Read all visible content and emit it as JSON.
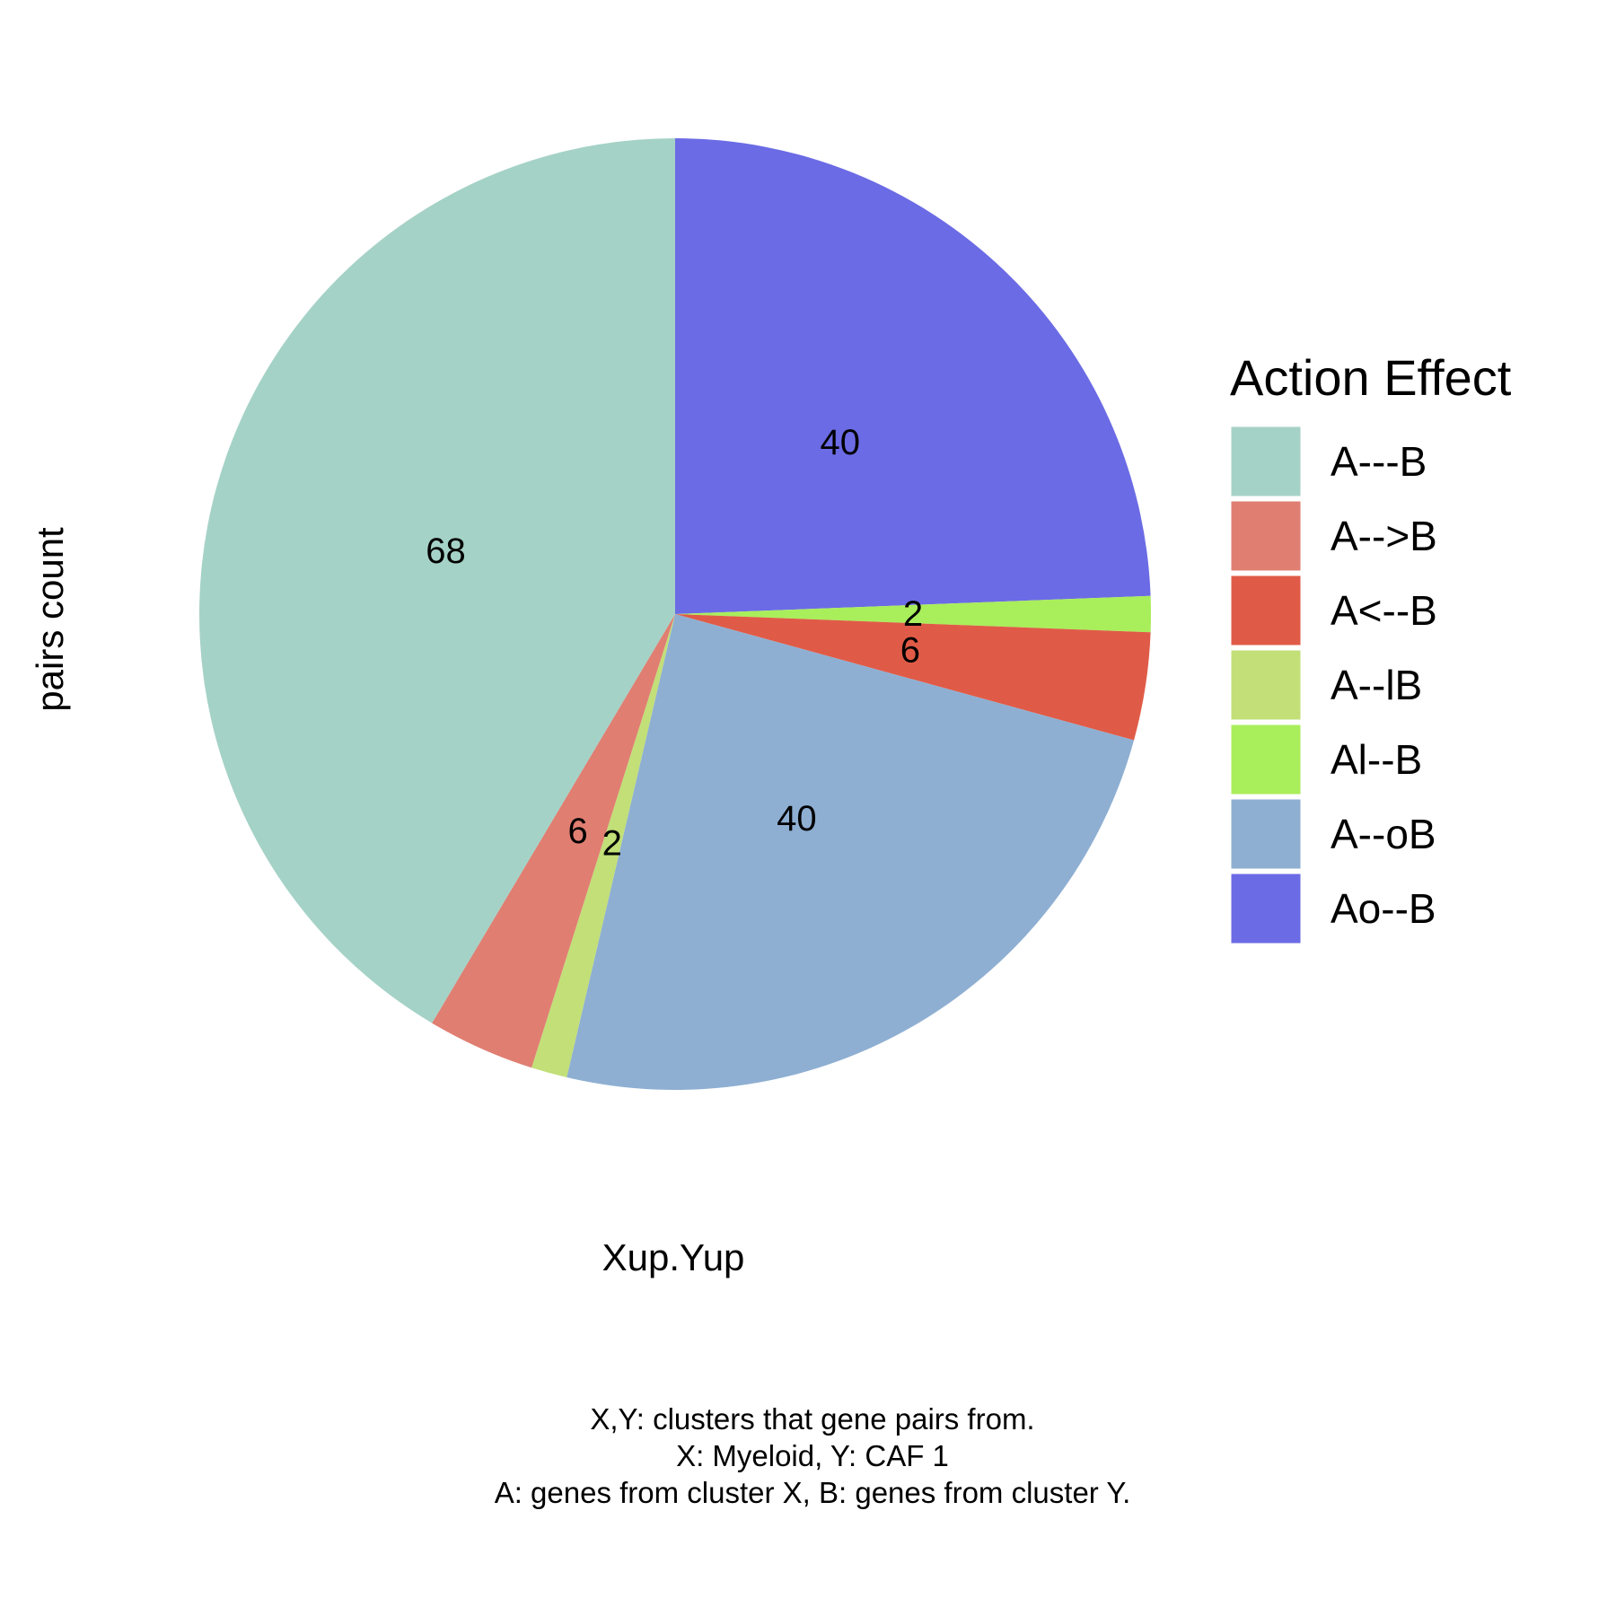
{
  "chart_data": {
    "type": "pie",
    "title": "",
    "xlabel": "Xup.Yup",
    "ylabel": "pairs count",
    "legend": {
      "title": "Action Effect",
      "position": "right"
    },
    "slices": [
      {
        "name": "A---B",
        "value": 68,
        "label": "68",
        "color": "#A5D2C6"
      },
      {
        "name": "A-->B",
        "value": 6,
        "label": "6",
        "color": "#E07E72"
      },
      {
        "name": "A<--B",
        "value": 6,
        "label": "6",
        "color": "#E05B47"
      },
      {
        "name": "A--lB",
        "value": 2,
        "label": "2",
        "color": "#C2DF78"
      },
      {
        "name": "Al--B",
        "value": 2,
        "label": "2",
        "color": "#A9EE5B"
      },
      {
        "name": "A--oB",
        "value": 40,
        "label": "40",
        "color": "#8EAFD2"
      },
      {
        "name": "Ao--B",
        "value": 40,
        "label": "40",
        "color": "#6B6BE5"
      }
    ],
    "draw_order": [
      "Ao--B",
      "Al--B",
      "A<--B",
      "A--oB",
      "A--lB",
      "A-->B",
      "A---B"
    ],
    "caption": [
      "X,Y: clusters that gene pairs from.",
      "X: Myeloid, Y: CAF 1",
      "A: genes from cluster X, B: genes from cluster Y."
    ]
  }
}
